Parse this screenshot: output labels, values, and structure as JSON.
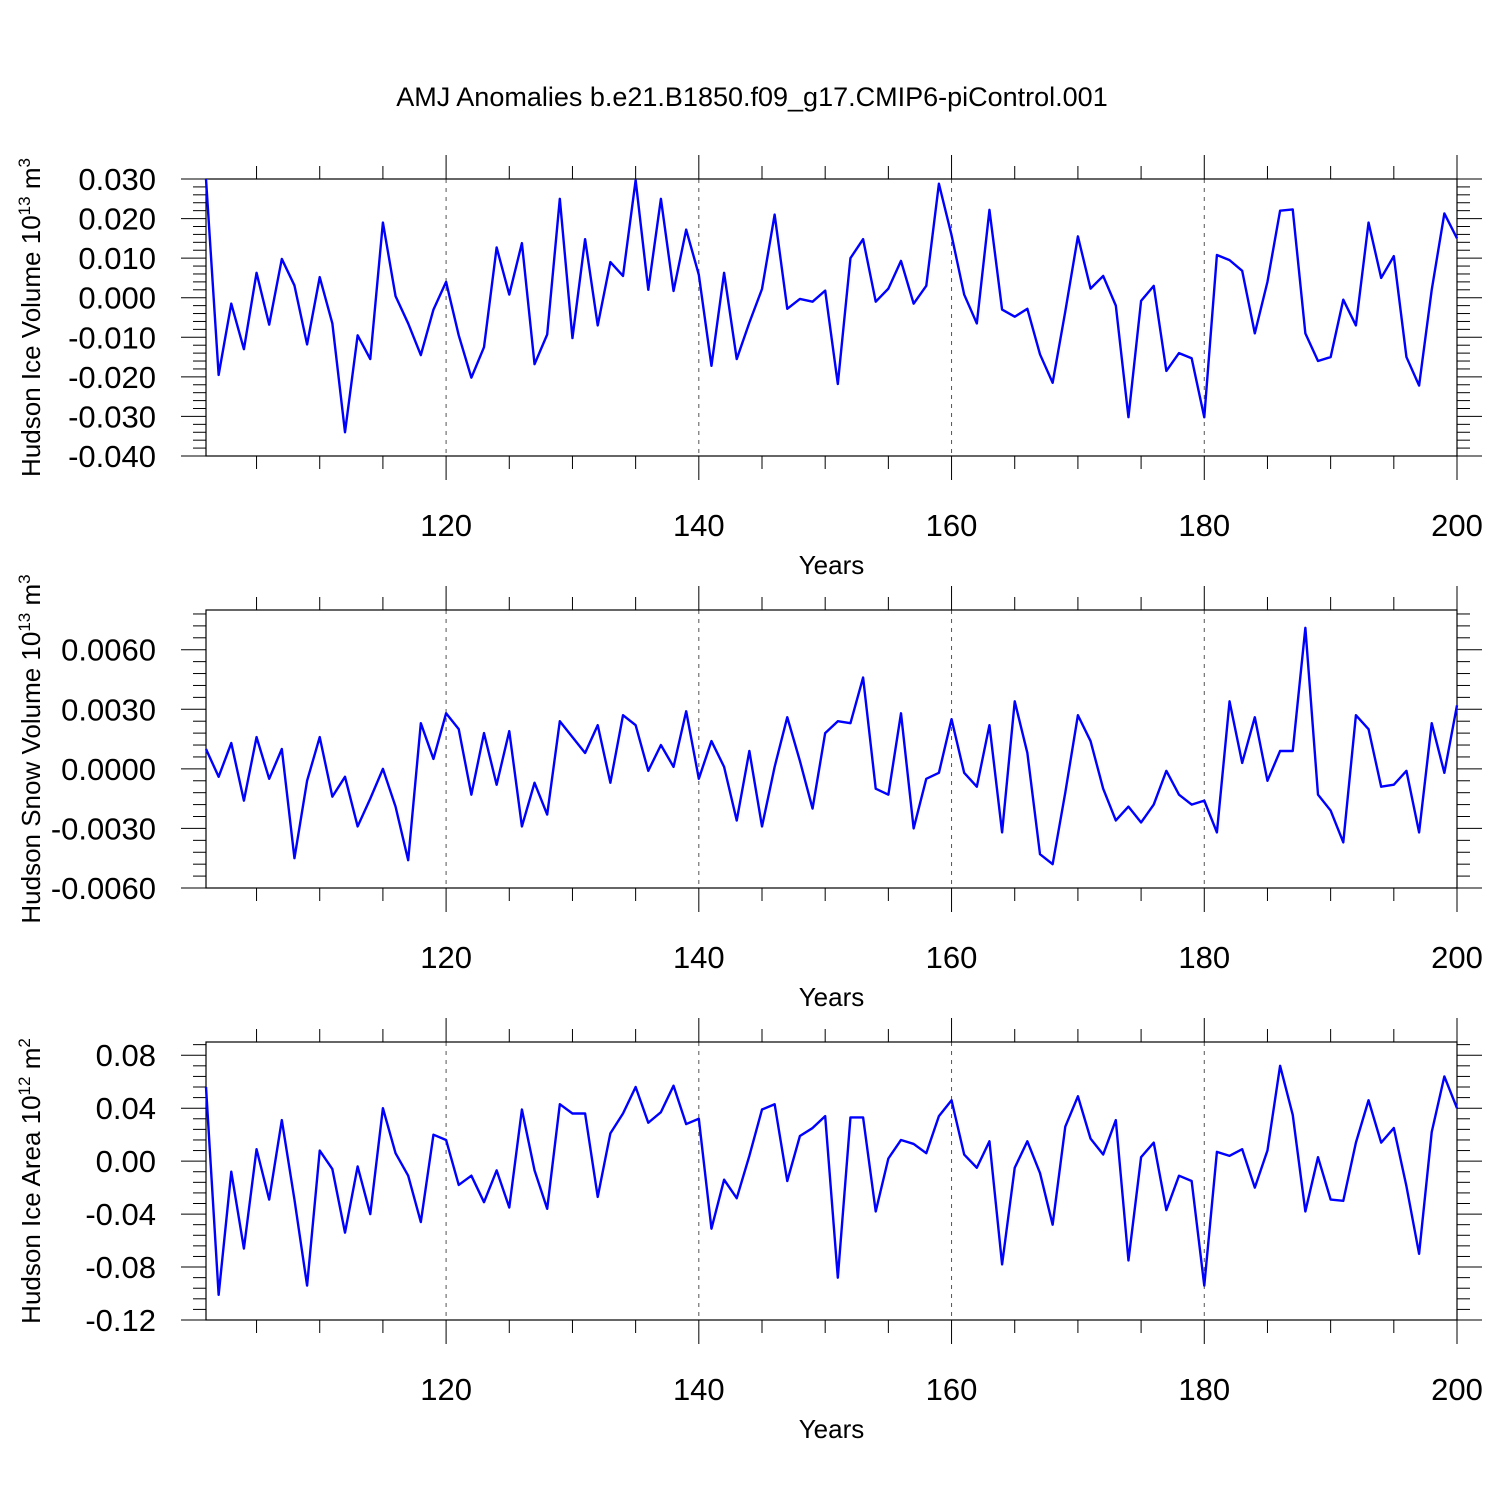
{
  "figure": {
    "title": "AMJ Anomalies b.e21.B1850.f09_g17.CMIP6-piControl.001"
  },
  "colors": {
    "line": "#0000ff",
    "axis": "#000000",
    "grid": "#555555"
  },
  "chart_data": [
    {
      "type": "line",
      "name": "hudson-ice-volume",
      "title": "",
      "xlabel": "Years",
      "ylabel_main": "Hudson Ice Volume 10",
      "ylabel_exp": "13",
      "ylabel_unit": " m",
      "ylabel_unit_exp": "3",
      "xlim": [
        101,
        200
      ],
      "ylim": [
        -0.04,
        0.03
      ],
      "yticks": [
        -0.04,
        -0.03,
        -0.02,
        -0.01,
        0.0,
        0.01,
        0.02,
        0.03
      ],
      "ytick_labels": [
        "-0.040",
        "-0.030",
        "-0.020",
        "-0.010",
        "0.000",
        "0.010",
        "0.020",
        "0.030"
      ],
      "xticks": [
        120,
        140,
        160,
        180,
        200
      ],
      "xtick_labels": [
        "120",
        "140",
        "160",
        "180",
        "200"
      ],
      "grid_x": [
        120,
        140,
        160,
        180
      ],
      "x_start": 101,
      "values": [
        0.03,
        -0.0195,
        -0.0015,
        -0.013,
        0.0063,
        -0.0068,
        0.0098,
        0.0031,
        -0.0118,
        0.0052,
        -0.0065,
        -0.034,
        -0.0095,
        -0.0155,
        0.019,
        0.0004,
        -0.0065,
        -0.0145,
        -0.003,
        0.004,
        -0.0095,
        -0.0202,
        -0.0125,
        0.0127,
        0.0008,
        0.0138,
        -0.0168,
        -0.0093,
        0.025,
        -0.0102,
        0.0148,
        -0.007,
        0.009,
        0.0055,
        0.0297,
        0.002,
        0.025,
        0.0017,
        0.0172,
        0.0058,
        -0.0172,
        0.0063,
        -0.0155,
        -0.0063,
        0.0022,
        0.021,
        -0.0028,
        -0.0003,
        -0.001,
        0.0018,
        -0.0218,
        0.01,
        0.0148,
        -0.001,
        0.0023,
        0.0093,
        -0.0015,
        0.003,
        0.0288,
        0.0158,
        0.0008,
        -0.0065,
        0.0222,
        -0.003,
        -0.0048,
        -0.0028,
        -0.0143,
        -0.0215,
        -0.0035,
        0.0155,
        0.0023,
        0.0055,
        -0.002,
        -0.0302,
        -0.0008,
        0.003,
        -0.0185,
        -0.014,
        -0.0153,
        -0.0302,
        0.0108,
        0.0095,
        0.0068,
        -0.009,
        0.004,
        0.022,
        0.0223,
        -0.009,
        -0.016,
        -0.015,
        -0.0005,
        -0.007,
        0.019,
        0.005,
        0.0105,
        -0.015,
        -0.0222,
        0.002,
        0.0213,
        0.015
      ]
    },
    {
      "type": "line",
      "name": "hudson-snow-volume",
      "title": "",
      "xlabel": "Years",
      "ylabel_main": "Hudson Snow Volume 10",
      "ylabel_exp": "13",
      "ylabel_unit": " m",
      "ylabel_unit_exp": "3",
      "xlim": [
        101,
        200
      ],
      "ylim": [
        -0.006,
        0.008
      ],
      "yticks": [
        -0.006,
        -0.003,
        0.0,
        0.003,
        0.006
      ],
      "ytick_labels": [
        "-0.0060",
        "-0.0030",
        "0.0000",
        "0.0030",
        "0.0060"
      ],
      "xticks": [
        120,
        140,
        160,
        180,
        200
      ],
      "xtick_labels": [
        "120",
        "140",
        "160",
        "180",
        "200"
      ],
      "grid_x": [
        120,
        140,
        160,
        180
      ],
      "x_start": 101,
      "values": [
        0.001,
        -0.0004,
        0.0013,
        -0.0016,
        0.0016,
        -0.0005,
        0.001,
        -0.0045,
        -0.0006,
        0.0016,
        -0.0014,
        -0.0004,
        -0.0029,
        -0.0015,
        0.0,
        -0.0019,
        -0.0046,
        0.0023,
        0.0005,
        0.0028,
        0.002,
        -0.0013,
        0.0018,
        -0.0008,
        0.0019,
        -0.0029,
        -0.0007,
        -0.0023,
        0.0024,
        0.0016,
        0.0008,
        0.0022,
        -0.0007,
        0.0027,
        0.0022,
        -0.0001,
        0.0012,
        0.0001,
        0.0029,
        -0.0005,
        0.0014,
        0.0001,
        -0.0026,
        0.0009,
        -0.0029,
        0.0001,
        0.0026,
        0.0004,
        -0.002,
        0.0018,
        0.0024,
        0.0023,
        0.0046,
        -0.001,
        -0.0013,
        0.0028,
        -0.003,
        -0.0005,
        -0.0002,
        0.0025,
        -0.0002,
        -0.0009,
        0.0022,
        -0.0032,
        0.0034,
        0.0008,
        -0.0043,
        -0.0048,
        -0.0012,
        0.0027,
        0.0014,
        -0.001,
        -0.0026,
        -0.0019,
        -0.0027,
        -0.0018,
        -0.0001,
        -0.0013,
        -0.0018,
        -0.0016,
        -0.0032,
        0.0034,
        0.0003,
        0.0026,
        -0.0006,
        0.0009,
        0.0009,
        0.0071,
        -0.0013,
        -0.0021,
        -0.0037,
        0.0027,
        0.002,
        -0.0009,
        -0.0008,
        -0.0001,
        -0.0032,
        0.0023,
        -0.0002,
        0.0032
      ]
    },
    {
      "type": "line",
      "name": "hudson-ice-area",
      "title": "",
      "xlabel": "Years",
      "ylabel_main": "Hudson Ice Area 10",
      "ylabel_exp": "12",
      "ylabel_unit": " m",
      "ylabel_unit_exp": "2",
      "xlim": [
        101,
        200
      ],
      "ylim": [
        -0.12,
        0.09
      ],
      "yticks": [
        -0.12,
        -0.08,
        -0.04,
        0.0,
        0.04,
        0.08
      ],
      "ytick_labels": [
        "-0.12",
        "-0.08",
        "-0.04",
        "0.00",
        "0.04",
        "0.08"
      ],
      "xticks": [
        120,
        140,
        160,
        180,
        200
      ],
      "xtick_labels": [
        "120",
        "140",
        "160",
        "180",
        "200"
      ],
      "grid_x": [
        120,
        140,
        160,
        180
      ],
      "x_start": 101,
      "values": [
        0.056,
        -0.101,
        -0.008,
        -0.066,
        0.009,
        -0.029,
        0.031,
        -0.029,
        -0.094,
        0.008,
        -0.006,
        -0.054,
        -0.004,
        -0.04,
        0.04,
        0.006,
        -0.011,
        -0.046,
        0.02,
        0.016,
        -0.018,
        -0.011,
        -0.031,
        -0.007,
        -0.035,
        0.039,
        -0.007,
        -0.036,
        0.043,
        0.036,
        0.036,
        -0.027,
        0.021,
        0.036,
        0.056,
        0.029,
        0.037,
        0.057,
        0.028,
        0.032,
        -0.051,
        -0.014,
        -0.028,
        0.004,
        0.039,
        0.043,
        -0.015,
        0.019,
        0.025,
        0.034,
        -0.088,
        0.033,
        0.033,
        -0.038,
        0.002,
        0.016,
        0.013,
        0.006,
        0.034,
        0.046,
        0.005,
        -0.005,
        0.015,
        -0.078,
        -0.005,
        0.015,
        -0.009,
        -0.048,
        0.026,
        0.049,
        0.017,
        0.005,
        0.031,
        -0.075,
        0.003,
        0.014,
        -0.037,
        -0.011,
        -0.015,
        -0.094,
        0.007,
        0.004,
        0.009,
        -0.02,
        0.008,
        0.072,
        0.035,
        -0.038,
        0.003,
        -0.029,
        -0.03,
        0.014,
        0.046,
        0.014,
        0.025,
        -0.019,
        -0.07,
        0.022,
        0.064,
        0.04
      ]
    }
  ]
}
